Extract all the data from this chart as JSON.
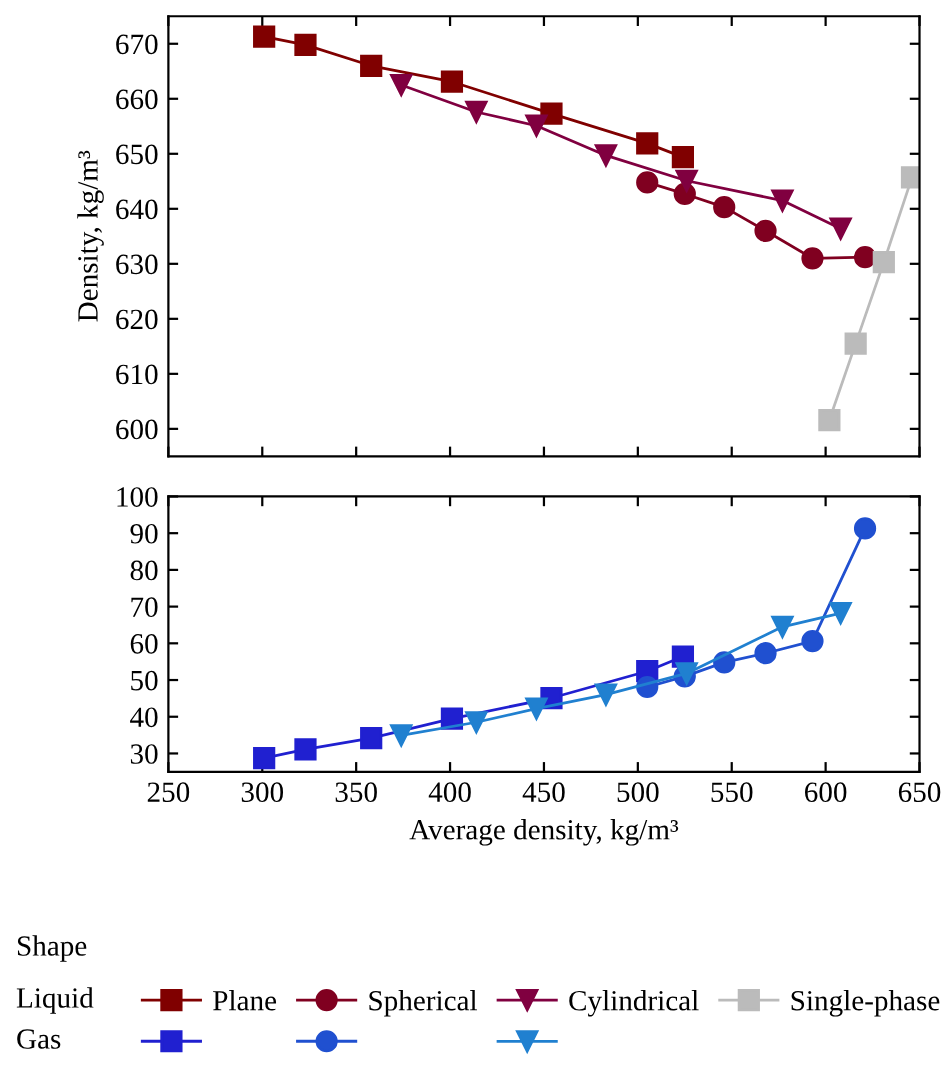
{
  "chart_data": [
    {
      "type": "line",
      "ylabel": "Density, kg/m³",
      "legend_title": "Shape",
      "annotations": [
        "Liquid"
      ],
      "legend": "bottom",
      "tick_labels": "y",
      "xlim": [
        250,
        650
      ],
      "xticks": [
        250,
        300,
        350,
        400,
        450,
        500,
        550,
        600,
        650
      ],
      "ylim": [
        595,
        675
      ],
      "yticks": [
        600,
        610,
        620,
        630,
        640,
        650,
        660,
        670
      ],
      "series": [
        {
          "name": "Plane",
          "color": "#800000",
          "marker": "square",
          "x": [
            301,
            323,
            358,
            401,
            454,
            505,
            524
          ],
          "values": [
            671.3,
            669.8,
            666,
            663.1,
            657.3,
            651.9,
            649.4
          ]
        },
        {
          "name": "Spherical",
          "color": "#800020",
          "marker": "circle",
          "x": [
            505,
            525,
            546,
            568,
            593,
            621
          ],
          "values": [
            644.8,
            642.7,
            640.3,
            636,
            631,
            631.2
          ]
        },
        {
          "name": "Cylindrical",
          "color": "#800040",
          "marker": "triangle",
          "x": [
            374,
            414,
            446,
            483,
            526,
            577,
            608
          ],
          "values": [
            662.5,
            657.6,
            655.1,
            649.7,
            645.1,
            641.5,
            636.4
          ]
        },
        {
          "name": "Single-phase",
          "color": "#bbbbbb",
          "marker": "square",
          "x": [
            602,
            616,
            631,
            646
          ],
          "values": [
            601.6,
            615.5,
            630.3,
            645.7
          ]
        }
      ]
    },
    {
      "type": "line",
      "xlabel": "Average density, kg/m³",
      "annotations": [
        "Gas"
      ],
      "xlim": [
        250,
        650
      ],
      "xticks": [
        250,
        300,
        350,
        400,
        450,
        500,
        550,
        600,
        650
      ],
      "ylim": [
        25,
        100
      ],
      "yticks": [
        30,
        40,
        50,
        60,
        70,
        80,
        90,
        100
      ],
      "series": [
        {
          "color": "#2020d0",
          "marker": "square",
          "x": [
            301,
            323,
            358,
            401,
            454,
            505,
            524
          ],
          "values": [
            28.7,
            31.1,
            34.2,
            39.5,
            45.1,
            52.4,
            56.4
          ]
        },
        {
          "color": "#2050d0",
          "marker": "circle",
          "x": [
            505,
            525,
            546,
            568,
            593,
            621
          ],
          "values": [
            48.1,
            51,
            54.8,
            57.3,
            60.6,
            91.3
          ]
        },
        {
          "color": "#2080d0",
          "marker": "triangle",
          "x": [
            374,
            414,
            446,
            483,
            526,
            577,
            608
          ],
          "values": [
            34.9,
            38.5,
            42.2,
            46,
            51.8,
            64.5,
            68.2
          ]
        }
      ]
    }
  ]
}
